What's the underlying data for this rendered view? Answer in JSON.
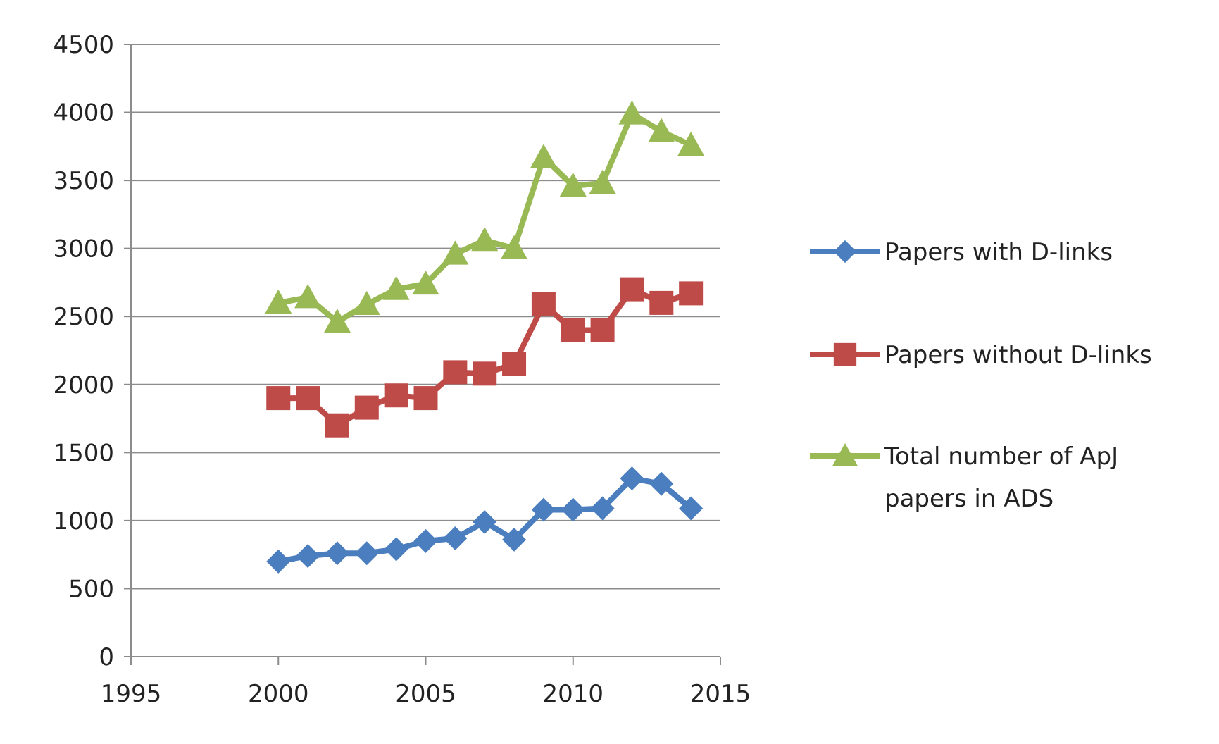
{
  "chart_data": {
    "type": "scatter",
    "title": "",
    "xlabel": "",
    "ylabel": "",
    "xlim": [
      1995,
      2015
    ],
    "ylim": [
      0,
      4500
    ],
    "xticks": [
      1995,
      2000,
      2005,
      2010,
      2015
    ],
    "yticks": [
      0,
      500,
      1000,
      1500,
      2000,
      2500,
      3000,
      3500,
      4000,
      4500
    ],
    "grid": "horizontal",
    "legend_position": "right",
    "x": [
      2000,
      2001,
      2002,
      2003,
      2004,
      2005,
      2006,
      2007,
      2008,
      2009,
      2010,
      2011,
      2012,
      2013,
      2014
    ],
    "series": [
      {
        "name": "Papers with D-links",
        "name_lines": [
          "Papers with D-links"
        ],
        "marker": "diamond",
        "color": "#4a7ebf",
        "values": [
          700,
          740,
          760,
          760,
          790,
          850,
          870,
          990,
          860,
          1080,
          1080,
          1090,
          1310,
          1270,
          1090
        ]
      },
      {
        "name": "Papers without D-links",
        "name_lines": [
          "Papers without D-links"
        ],
        "marker": "square",
        "color": "#be4b48",
        "values": [
          1900,
          1900,
          1700,
          1830,
          1920,
          1900,
          2090,
          2080,
          2150,
          2590,
          2400,
          2400,
          2700,
          2600,
          2670
        ]
      },
      {
        "name": "Total number of ApJ papers in ADS",
        "name_lines": [
          "Total number of ApJ",
          "papers in ADS"
        ],
        "marker": "triangle",
        "color": "#98b954",
        "values": [
          2600,
          2640,
          2460,
          2590,
          2700,
          2740,
          2960,
          3060,
          3000,
          3670,
          3460,
          3480,
          3990,
          3860,
          3760
        ]
      }
    ]
  }
}
